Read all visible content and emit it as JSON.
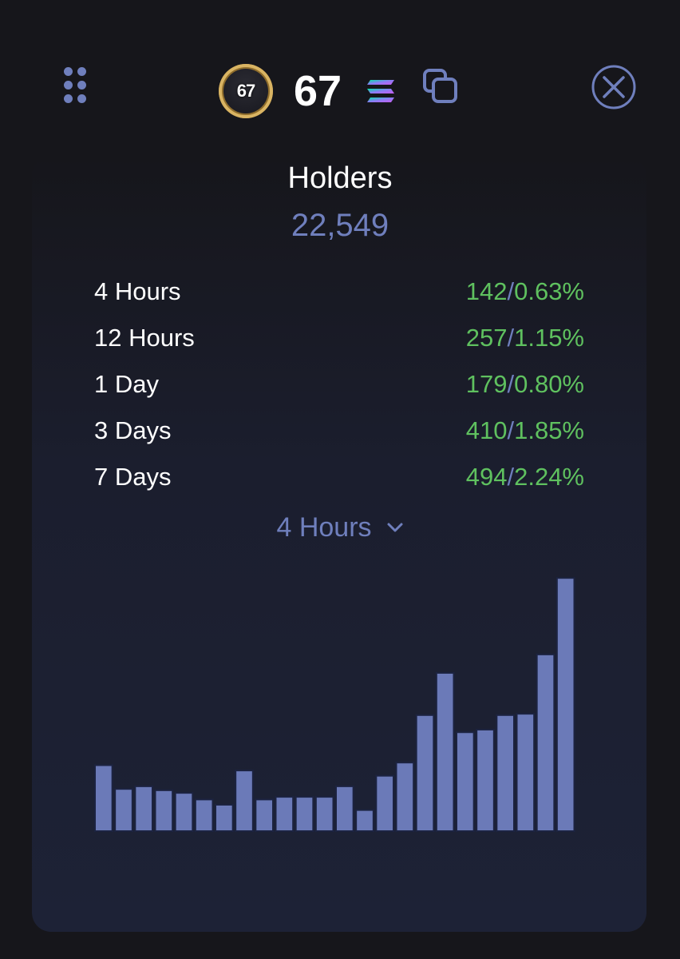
{
  "header": {
    "avatar_text": "67",
    "token_name": "67",
    "icons": {
      "drag": "drag-handle-icon",
      "chain": "solana-icon",
      "copy": "copy-icon",
      "close": "close-icon"
    }
  },
  "holders": {
    "title": "Holders",
    "total": "22,549",
    "rows": [
      {
        "label": "4 Hours",
        "count": "142",
        "percent": "0.63%"
      },
      {
        "label": "12 Hours",
        "count": "257",
        "percent": "1.15%"
      },
      {
        "label": "1 Day",
        "count": "179",
        "percent": "0.80%"
      },
      {
        "label": "3 Days",
        "count": "410",
        "percent": "1.85%"
      },
      {
        "label": "7 Days",
        "count": "494",
        "percent": "2.24%"
      }
    ]
  },
  "period_selector": {
    "selected": "4 Hours"
  },
  "colors": {
    "accent": "#6f7fbd",
    "positive": "#5fc15f",
    "bar_fill": "#6b7ab8",
    "bar_stroke": "#1c2340"
  },
  "chart_data": {
    "type": "bar",
    "values": [
      25,
      16,
      17,
      15.5,
      14.5,
      12,
      10,
      23,
      12,
      13,
      13,
      13,
      17,
      8,
      21,
      26,
      44,
      60,
      37.5,
      38.5,
      44,
      44.5,
      67,
      96
    ],
    "ylim": [
      0,
      100
    ]
  }
}
